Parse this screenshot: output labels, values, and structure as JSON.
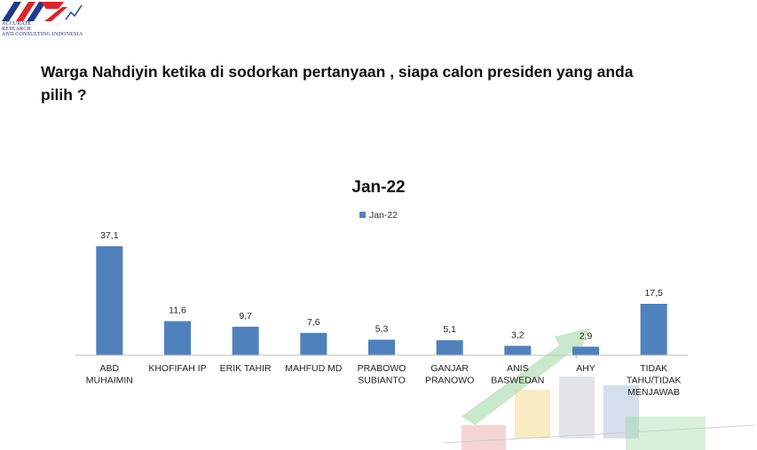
{
  "logo": {
    "line1": "ACCURATE",
    "line2": "RESEARCH",
    "line3": "AND CONSULTING INDONESIA"
  },
  "question": "Warga Nahdiyin ketika  di sodorkan pertanyaan , siapa calon presiden yang anda pilih ?",
  "colors": {
    "bar": "#4f81bd",
    "axis": "#bfbfbf"
  },
  "chart_data": {
    "type": "bar",
    "title": "Jan-22",
    "legend": {
      "entries": [
        "Jan-22"
      ],
      "placement": "top"
    },
    "categories": [
      [
        "ABD",
        "MUHAIMIN"
      ],
      [
        "KHOFIFAH IP"
      ],
      [
        "ERIK TAHIR"
      ],
      [
        "MAHFUD MD"
      ],
      [
        "PRABOWO",
        "SUBIANTO"
      ],
      [
        "GANJAR",
        "PRANOWO"
      ],
      [
        "ANIS",
        "BASWEDAN"
      ],
      [
        "AHY"
      ],
      [
        "TIDAK",
        "TAHU/TIDAK",
        "MENJAWAB"
      ]
    ],
    "series": [
      {
        "name": "Jan-22",
        "values": [
          37.1,
          11.6,
          9.7,
          7.6,
          5.3,
          5.1,
          3.2,
          2.9,
          17.5
        ],
        "labels": [
          "37,1",
          "11,6",
          "9,7",
          "7,6",
          "5,3",
          "5,1",
          "3,2",
          "2,9",
          "17,5"
        ]
      }
    ],
    "ylim": [
      0,
      37.1
    ],
    "grid": false
  }
}
